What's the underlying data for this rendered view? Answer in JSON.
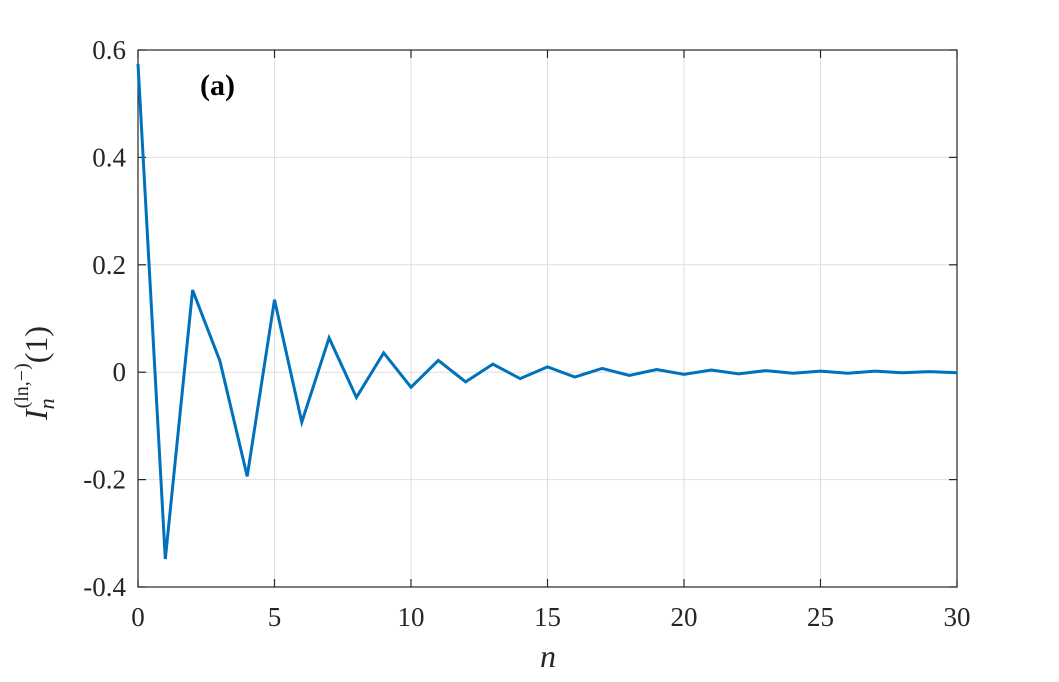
{
  "chart_data": {
    "type": "line",
    "panel_label": "(a)",
    "xlabel": "n",
    "ylabel": {
      "main": "I",
      "subscript": "n",
      "superscript": "(ln,−)",
      "argument": "(1)"
    },
    "xlim": [
      0,
      30
    ],
    "ylim": [
      -0.4,
      0.6
    ],
    "x_ticks": [
      0,
      5,
      10,
      15,
      20,
      25,
      30
    ],
    "x_tick_labels": [
      "0",
      "5",
      "10",
      "15",
      "20",
      "25",
      "30"
    ],
    "y_ticks": [
      -0.4,
      -0.2,
      0,
      0.2,
      0.4,
      0.6
    ],
    "y_tick_labels": [
      "-0.4",
      "-0.2",
      "0",
      "0.2",
      "0.4",
      "0.6"
    ],
    "grid": true,
    "colors": {
      "line": "#0072BD",
      "grid": "#dfdfdf",
      "axis": "#262626"
    },
    "series": [
      {
        "x": [
          0,
          1,
          2,
          3,
          4,
          5,
          6,
          7,
          8,
          9,
          10,
          11,
          12,
          13,
          14,
          15,
          16,
          17,
          18,
          19,
          20,
          21,
          22,
          23,
          24,
          25,
          26,
          27,
          28,
          29,
          30
        ],
        "values": [
          0.574,
          -0.348,
          0.153,
          0.021,
          -0.194,
          0.135,
          -0.093,
          0.064,
          -0.047,
          0.036,
          -0.028,
          0.022,
          -0.018,
          0.015,
          -0.012,
          0.01,
          -0.009,
          0.007,
          -0.006,
          0.005,
          -0.004,
          0.004,
          -0.003,
          0.003,
          -0.002,
          0.002,
          -0.002,
          0.002,
          -0.001,
          0.001,
          -0.001
        ]
      }
    ]
  }
}
